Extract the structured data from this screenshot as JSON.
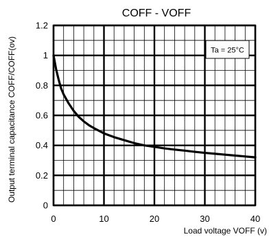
{
  "chart_data": {
    "type": "line",
    "title": "COFF - VOFF",
    "xlabel": "Load voltage VOFF (v)",
    "ylabel": "Output terminal capacitance COFF/COFF(ov)",
    "xlim": [
      0,
      40
    ],
    "ylim": [
      0,
      1.2
    ],
    "x_major_ticks": [
      0,
      10,
      20,
      30,
      40
    ],
    "y_major_ticks": [
      0,
      0.2,
      0.4,
      0.6,
      0.8,
      1,
      1.2
    ],
    "x_tick_labels": [
      "0",
      "10",
      "20",
      "30",
      "40"
    ],
    "y_tick_labels": [
      "0",
      "0.2",
      "0.4",
      "0.6",
      "0.8",
      "1",
      "1.2"
    ],
    "grid": true,
    "annotation": "Ta = 25°C",
    "series": [
      {
        "x": [
          0,
          0.5,
          1,
          1.5,
          2,
          3,
          4,
          5,
          6,
          7,
          8,
          10,
          12,
          14,
          16,
          18,
          20,
          22,
          24,
          26,
          28,
          30,
          32,
          34,
          36,
          38,
          40
        ],
        "values": [
          1.0,
          0.91,
          0.84,
          0.78,
          0.74,
          0.68,
          0.63,
          0.59,
          0.56,
          0.535,
          0.515,
          0.48,
          0.455,
          0.435,
          0.415,
          0.4,
          0.39,
          0.38,
          0.372,
          0.365,
          0.357,
          0.35,
          0.344,
          0.338,
          0.332,
          0.326,
          0.32
        ]
      }
    ]
  }
}
